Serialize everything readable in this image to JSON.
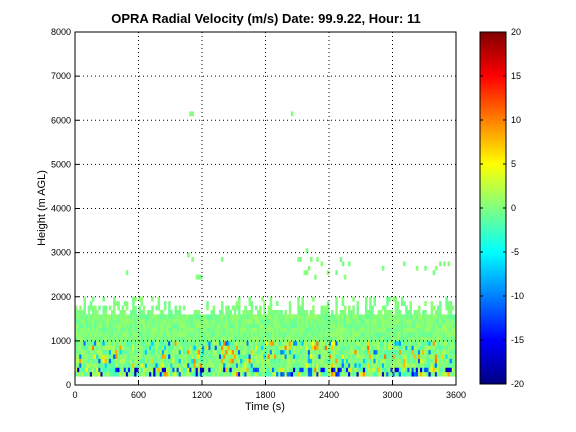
{
  "chart_data": {
    "type": "heatmap",
    "title": "OPRA Radial Velocity (m/s)  Date: 99.9.22, Hour: 11",
    "xlabel": "Time (s)",
    "ylabel": "Height (m AGL)",
    "xlim": [
      0,
      3600
    ],
    "ylim": [
      0,
      8000
    ],
    "xticks": [
      0,
      600,
      1200,
      1800,
      2400,
      3000,
      3600
    ],
    "yticks": [
      0,
      1000,
      2000,
      3000,
      4000,
      5000,
      6000,
      7000,
      8000
    ],
    "grid": true,
    "grid_style": "dotted",
    "colormap": "jet",
    "colorbar": {
      "range": [
        -20,
        20
      ],
      "ticks": [
        -20,
        -15,
        -10,
        -5,
        0,
        5,
        10,
        15,
        20
      ],
      "tick_labels": [
        "-20",
        "-15",
        "-10",
        "-5",
        "0",
        "5",
        "10",
        "15",
        "20"
      ],
      "placement": "right"
    },
    "time_step_s": 20,
    "height_step_m": 100,
    "layers": [
      {
        "height_range_m": [
          200,
          400
        ],
        "velocity_range": [
          -20,
          10
        ],
        "coverage": "full",
        "note": "strongly mixed values"
      },
      {
        "height_range_m": [
          400,
          1000
        ],
        "velocity_range": [
          -12,
          12
        ],
        "coverage": "full",
        "note": "mixed values, mostly near 0"
      },
      {
        "height_range_m": [
          1000,
          1600
        ],
        "velocity_range": [
          -2,
          2
        ],
        "coverage": "full"
      },
      {
        "height_range_m": [
          1600,
          2100
        ],
        "velocity_range": [
          -1,
          1
        ],
        "coverage": "intermittent"
      },
      {
        "height_range_m": [
          2200,
          3100
        ],
        "velocity_range": [
          -1,
          1
        ],
        "coverage": "sparse patches"
      },
      {
        "height_range_m": [
          6100,
          6300
        ],
        "velocity_range": [
          -1,
          1
        ],
        "coverage": "two isolated returns near t=1100 s and t=2050 s"
      }
    ]
  }
}
